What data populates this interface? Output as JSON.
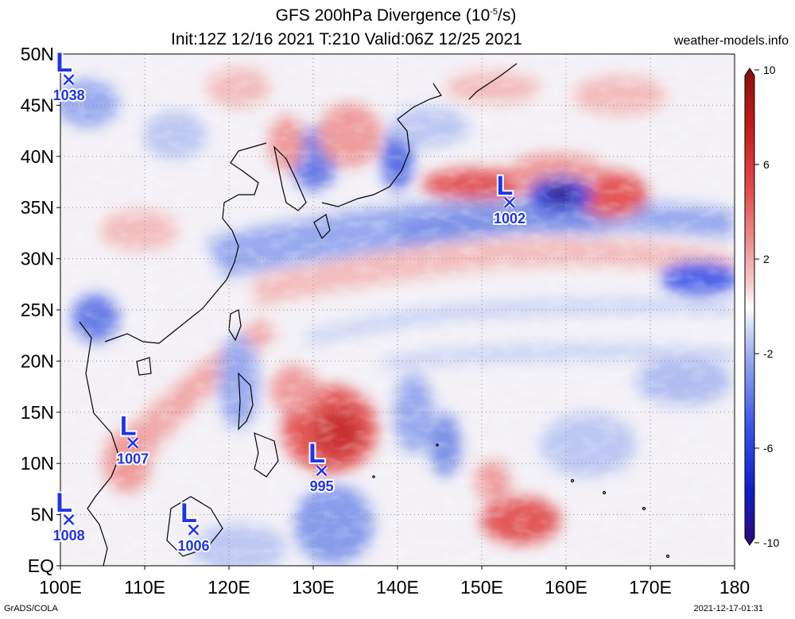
{
  "title": {
    "prefix": "GFS 200hPa Divergence (10",
    "exponent": "-5",
    "suffix": "/s)",
    "line2": "Init:12Z 12/16 2021 T:210 Valid:06Z 12/25 2021"
  },
  "credit": "weather-models.info",
  "footer": {
    "left": "GrADS/COLA",
    "right": "2021-12-17-01:31"
  },
  "map": {
    "lon_range": [
      100,
      180
    ],
    "lat_range": [
      0,
      50
    ],
    "lon_ticks": [
      "100E",
      "110E",
      "120E",
      "130E",
      "140E",
      "150E",
      "160E",
      "170E",
      "180"
    ],
    "lat_ticks": [
      "EQ",
      "5N",
      "10N",
      "15N",
      "20N",
      "25N",
      "30N",
      "35N",
      "40N",
      "45N",
      "50N"
    ],
    "grid_lines": "dotted, every 10 deg lon and 5 deg lat"
  },
  "colorbar": {
    "range": [
      -10,
      10
    ],
    "ticks": [
      "10",
      "6",
      "2",
      "-2",
      "-6",
      "-10"
    ],
    "colors": [
      "#2b0a7a",
      "#1020c8",
      "#3a55e8",
      "#8fa2ee",
      "#d4dcf6",
      "#ffffff",
      "#f6d2d2",
      "#ee9393",
      "#e24a4a",
      "#c41a1a",
      "#8a0f0f"
    ]
  },
  "lows": [
    {
      "label": "L",
      "pressure": "1038",
      "lon": 101.0,
      "lat": 47.5
    },
    {
      "label": "L",
      "pressure": "1002",
      "lon": 153.3,
      "lat": 35.5
    },
    {
      "label": "L",
      "pressure": "1007",
      "lon": 108.6,
      "lat": 12.0
    },
    {
      "label": "L",
      "pressure": "995",
      "lon": 131.0,
      "lat": 9.3
    },
    {
      "label": "L",
      "pressure": "1008",
      "lon": 101.0,
      "lat": 4.5
    },
    {
      "label": "L",
      "pressure": "1006",
      "lon": 115.8,
      "lat": 3.5
    }
  ],
  "colors": {
    "low_marker": "#2034e8",
    "coastline": "#000000",
    "grid": "#8a8a8a"
  }
}
